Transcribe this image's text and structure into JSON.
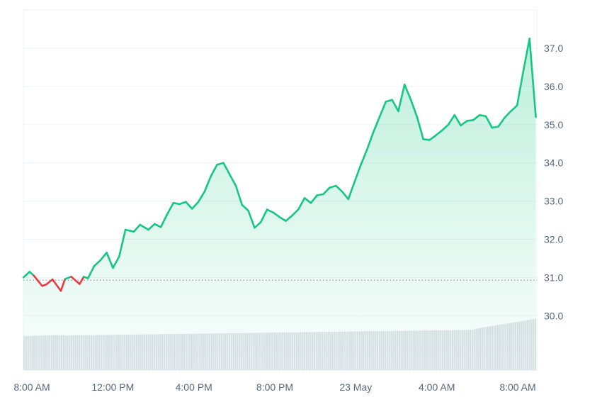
{
  "chart_data": {
    "type": "area",
    "baseline": 30.93,
    "ylim": [
      29.0,
      37.8
    ],
    "y_ticks": [
      "37.0",
      "36.0",
      "35.0",
      "34.0",
      "33.0",
      "32.0",
      "31.0",
      "30.0"
    ],
    "x_ticks": [
      "8:00 AM",
      "12:00 PM",
      "4:00 PM",
      "8:00 PM",
      "23 May",
      "4:00 AM",
      "8:00 AM"
    ],
    "colors": {
      "up": "#16c784",
      "down": "#ea3943",
      "volume": "#dde1e6"
    },
    "price_series": {
      "x_hours": [
        0,
        0.3,
        0.5,
        0.9,
        1.1,
        1.4,
        1.8,
        2.0,
        2.3,
        2.7,
        2.9,
        3.1,
        3.4,
        3.7,
        4.0,
        4.3,
        4.6,
        4.9,
        5.3,
        5.6,
        6.0,
        6.3,
        6.6,
        6.9,
        7.2,
        7.5,
        7.8,
        8.1,
        8.4,
        8.7,
        9.0,
        9.3,
        9.6,
        9.9,
        10.2,
        10.5,
        10.8,
        11.1,
        11.4,
        11.7,
        12.0,
        12.3,
        12.6,
        12.9,
        13.2,
        13.5,
        13.8,
        14.1,
        14.4,
        14.7,
        15.0,
        15.3,
        15.6,
        15.9,
        16.2,
        16.5,
        16.8,
        17.1,
        17.4,
        17.7,
        18.0,
        18.3,
        18.6,
        18.9,
        19.2,
        19.5,
        19.8,
        20.1,
        20.4,
        20.7,
        21.0,
        21.3,
        21.6,
        21.9,
        22.2,
        22.5,
        22.8,
        23.1,
        23.4,
        23.7,
        24.0,
        24.3,
        24.6
      ],
      "price": [
        31.0,
        31.15,
        31.05,
        30.78,
        30.82,
        30.95,
        30.65,
        30.96,
        31.02,
        30.83,
        31.02,
        30.98,
        31.3,
        31.45,
        31.65,
        31.25,
        31.55,
        32.25,
        32.2,
        32.38,
        32.25,
        32.4,
        32.32,
        32.65,
        32.95,
        32.92,
        32.98,
        32.8,
        32.98,
        33.25,
        33.65,
        33.95,
        34.0,
        33.7,
        33.4,
        32.9,
        32.75,
        32.3,
        32.45,
        32.78,
        32.7,
        32.58,
        32.48,
        32.62,
        32.78,
        33.08,
        32.95,
        33.15,
        33.18,
        33.35,
        33.4,
        33.25,
        33.05,
        33.5,
        33.95,
        34.35,
        34.8,
        35.2,
        35.6,
        35.65,
        35.35,
        36.05,
        35.65,
        35.2,
        34.62,
        34.6,
        34.72,
        34.85,
        35.0,
        35.25,
        34.98,
        35.1,
        35.12,
        35.25,
        35.22,
        34.92,
        34.95,
        35.18,
        35.35,
        35.5,
        36.4,
        37.25,
        35.2
      ]
    }
  }
}
